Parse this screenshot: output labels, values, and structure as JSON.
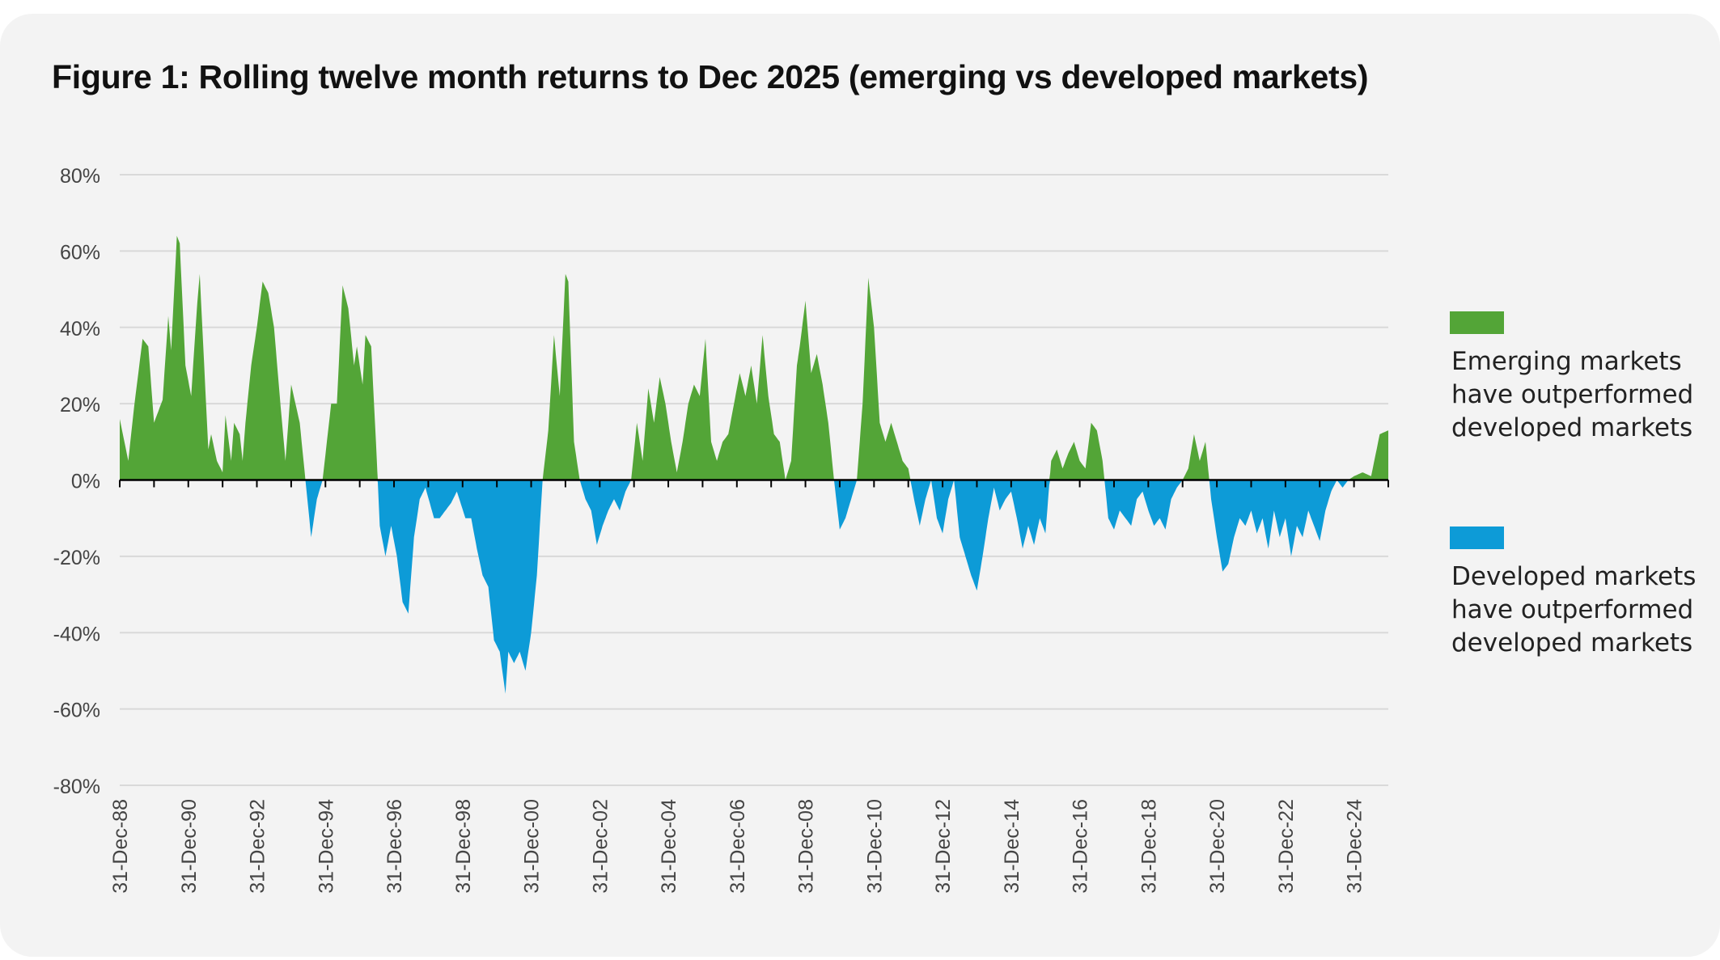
{
  "title": "Figure 1: Rolling twelve month returns to Dec 2025 (emerging vs developed markets)",
  "colors": {
    "positive": "#53a537",
    "negative": "#0d9bd7",
    "gridline": "#d9d9d9",
    "axis": "#000000"
  },
  "legend": [
    {
      "label_line1": "Emerging markets",
      "label_line2": "have outperformed",
      "label_line3": "developed markets",
      "color": "#53a537"
    },
    {
      "label_line1": "Developed markets",
      "label_line2": "have outperformed",
      "label_line3": "developed markets",
      "color": "#0d9bd7"
    }
  ],
  "chart_data": {
    "type": "area",
    "title": "Figure 1: Rolling twelve month returns to Dec 2025 (emerging vs developed markets)",
    "xlabel": "",
    "ylabel": "",
    "ylim": [
      -80,
      80
    ],
    "yticks": [
      "80%",
      "60%",
      "40%",
      "20%",
      "0%",
      "-20%",
      "-40%",
      "-60%",
      "-80%"
    ],
    "xticks": [
      "31-Dec-88",
      "31-Dec-90",
      "31-Dec-92",
      "31-Dec-94",
      "31-Dec-96",
      "31-Dec-98",
      "31-Dec-00",
      "31-Dec-02",
      "31-Dec-04",
      "31-Dec-06",
      "31-Dec-08",
      "31-Dec-10",
      "31-Dec-12",
      "31-Dec-14",
      "31-Dec-16",
      "31-Dec-18",
      "31-Dec-20",
      "31-Dec-22",
      "31-Dec-24"
    ],
    "x_range": [
      "1988-12-31",
      "2025-12-31"
    ],
    "grid": true,
    "legend_position": "right",
    "series": [
      {
        "name": "Emerging markets have outperformed developed markets",
        "note": "relative rolling 12-month return (EM minus DM); positive filled green, negative filled blue",
        "points": [
          [
            "1988-12",
            16
          ],
          [
            "1989-03",
            5
          ],
          [
            "1989-05",
            19
          ],
          [
            "1989-08",
            37
          ],
          [
            "1989-10",
            35
          ],
          [
            "1989-12",
            15
          ],
          [
            "1990-03",
            21
          ],
          [
            "1990-05",
            43
          ],
          [
            "1990-06",
            34
          ],
          [
            "1990-08",
            64
          ],
          [
            "1990-09",
            62
          ],
          [
            "1990-11",
            30
          ],
          [
            "1991-01",
            22
          ],
          [
            "1991-03",
            45
          ],
          [
            "1991-04",
            54
          ],
          [
            "1991-07",
            8
          ],
          [
            "1991-08",
            12
          ],
          [
            "1991-10",
            5
          ],
          [
            "1991-12",
            2
          ],
          [
            "1992-01",
            17
          ],
          [
            "1992-03",
            5
          ],
          [
            "1992-04",
            15
          ],
          [
            "1992-06",
            12
          ],
          [
            "1992-07",
            5
          ],
          [
            "1992-08",
            15
          ],
          [
            "1992-10",
            30
          ],
          [
            "1992-12",
            40
          ],
          [
            "1993-02",
            52
          ],
          [
            "1993-04",
            49
          ],
          [
            "1993-06",
            40
          ],
          [
            "1993-08",
            22
          ],
          [
            "1993-10",
            5
          ],
          [
            "1993-12",
            25
          ],
          [
            "1994-03",
            15
          ],
          [
            "1994-05",
            0
          ],
          [
            "1994-07",
            -15
          ],
          [
            "1994-09",
            -5
          ],
          [
            "1994-11",
            0
          ],
          [
            "1995-02",
            20
          ],
          [
            "1995-04",
            20
          ],
          [
            "1995-06",
            51
          ],
          [
            "1995-08",
            45
          ],
          [
            "1995-10",
            30
          ],
          [
            "1995-11",
            35
          ],
          [
            "1996-01",
            25
          ],
          [
            "1996-02",
            38
          ],
          [
            "1996-04",
            35
          ],
          [
            "1996-06",
            5
          ],
          [
            "1996-07",
            -12
          ],
          [
            "1996-09",
            -20
          ],
          [
            "1996-11",
            -12
          ],
          [
            "1997-01",
            -20
          ],
          [
            "1997-03",
            -32
          ],
          [
            "1997-05",
            -35
          ],
          [
            "1997-07",
            -15
          ],
          [
            "1997-09",
            -5
          ],
          [
            "1997-11",
            -2
          ],
          [
            "1998-02",
            -10
          ],
          [
            "1998-04",
            -10
          ],
          [
            "1998-06",
            -8
          ],
          [
            "1998-08",
            -6
          ],
          [
            "1998-10",
            -3
          ],
          [
            "1999-01",
            -10
          ],
          [
            "1999-03",
            -10
          ],
          [
            "1999-05",
            -18
          ],
          [
            "1999-07",
            -25
          ],
          [
            "1999-09",
            -28
          ],
          [
            "1999-11",
            -42
          ],
          [
            "2000-01",
            -45
          ],
          [
            "2000-03",
            -56
          ],
          [
            "2000-04",
            -45
          ],
          [
            "2000-06",
            -48
          ],
          [
            "2000-08",
            -45
          ],
          [
            "2000-10",
            -50
          ],
          [
            "2000-12",
            -40
          ],
          [
            "2001-02",
            -25
          ],
          [
            "2001-04",
            0
          ],
          [
            "2001-06",
            13
          ],
          [
            "2001-08",
            38
          ],
          [
            "2001-10",
            22
          ],
          [
            "2001-12",
            54
          ],
          [
            "2002-01",
            52
          ],
          [
            "2002-03",
            10
          ],
          [
            "2002-05",
            0
          ],
          [
            "2002-07",
            -5
          ],
          [
            "2002-09",
            -8
          ],
          [
            "2002-11",
            -17
          ],
          [
            "2003-01",
            -12
          ],
          [
            "2003-03",
            -8
          ],
          [
            "2003-05",
            -5
          ],
          [
            "2003-07",
            -8
          ],
          [
            "2003-09",
            -3
          ],
          [
            "2003-11",
            0
          ],
          [
            "2004-01",
            15
          ],
          [
            "2004-03",
            5
          ],
          [
            "2004-05",
            24
          ],
          [
            "2004-07",
            15
          ],
          [
            "2004-09",
            27
          ],
          [
            "2004-11",
            20
          ],
          [
            "2005-01",
            10
          ],
          [
            "2005-03",
            2
          ],
          [
            "2005-05",
            10
          ],
          [
            "2005-07",
            20
          ],
          [
            "2005-09",
            25
          ],
          [
            "2005-11",
            22
          ],
          [
            "2006-01",
            37
          ],
          [
            "2006-03",
            10
          ],
          [
            "2006-05",
            5
          ],
          [
            "2006-07",
            10
          ],
          [
            "2006-09",
            12
          ],
          [
            "2006-11",
            20
          ],
          [
            "2007-01",
            28
          ],
          [
            "2007-03",
            22
          ],
          [
            "2007-05",
            30
          ],
          [
            "2007-07",
            20
          ],
          [
            "2007-09",
            38
          ],
          [
            "2007-11",
            22
          ],
          [
            "2008-01",
            12
          ],
          [
            "2008-03",
            10
          ],
          [
            "2008-05",
            0
          ],
          [
            "2008-07",
            5
          ],
          [
            "2008-09",
            30
          ],
          [
            "2008-10",
            35
          ],
          [
            "2008-12",
            47
          ],
          [
            "2009-02",
            28
          ],
          [
            "2009-04",
            33
          ],
          [
            "2009-06",
            25
          ],
          [
            "2009-08",
            15
          ],
          [
            "2009-10",
            0
          ],
          [
            "2009-12",
            -13
          ],
          [
            "2010-02",
            -10
          ],
          [
            "2010-04",
            -5
          ],
          [
            "2010-06",
            0
          ],
          [
            "2010-08",
            20
          ],
          [
            "2010-10",
            53
          ],
          [
            "2010-12",
            40
          ],
          [
            "2011-02",
            15
          ],
          [
            "2011-04",
            10
          ],
          [
            "2011-06",
            15
          ],
          [
            "2011-08",
            10
          ],
          [
            "2011-10",
            5
          ],
          [
            "2011-12",
            3
          ],
          [
            "2012-02",
            -5
          ],
          [
            "2012-04",
            -12
          ],
          [
            "2012-06",
            -5
          ],
          [
            "2012-08",
            0
          ],
          [
            "2012-10",
            -10
          ],
          [
            "2012-12",
            -14
          ],
          [
            "2013-02",
            -5
          ],
          [
            "2013-04",
            0
          ],
          [
            "2013-06",
            -15
          ],
          [
            "2013-08",
            -20
          ],
          [
            "2013-10",
            -25
          ],
          [
            "2013-12",
            -29
          ],
          [
            "2014-02",
            -20
          ],
          [
            "2014-04",
            -10
          ],
          [
            "2014-06",
            -2
          ],
          [
            "2014-08",
            -8
          ],
          [
            "2014-10",
            -5
          ],
          [
            "2014-12",
            -3
          ],
          [
            "2015-02",
            -10
          ],
          [
            "2015-04",
            -18
          ],
          [
            "2015-06",
            -12
          ],
          [
            "2015-08",
            -17
          ],
          [
            "2015-10",
            -10
          ],
          [
            "2015-12",
            -14
          ],
          [
            "2016-02",
            5
          ],
          [
            "2016-04",
            8
          ],
          [
            "2016-06",
            3
          ],
          [
            "2016-08",
            7
          ],
          [
            "2016-10",
            10
          ],
          [
            "2016-12",
            5
          ],
          [
            "2017-02",
            3
          ],
          [
            "2017-04",
            15
          ],
          [
            "2017-06",
            13
          ],
          [
            "2017-08",
            5
          ],
          [
            "2017-10",
            -10
          ],
          [
            "2017-12",
            -13
          ],
          [
            "2018-02",
            -8
          ],
          [
            "2018-04",
            -10
          ],
          [
            "2018-06",
            -12
          ],
          [
            "2018-08",
            -5
          ],
          [
            "2018-10",
            -3
          ],
          [
            "2018-12",
            -8
          ],
          [
            "2019-02",
            -12
          ],
          [
            "2019-04",
            -10
          ],
          [
            "2019-06",
            -13
          ],
          [
            "2019-08",
            -5
          ],
          [
            "2019-10",
            -2
          ],
          [
            "2019-12",
            0
          ],
          [
            "2020-02",
            3
          ],
          [
            "2020-04",
            12
          ],
          [
            "2020-06",
            5
          ],
          [
            "2020-08",
            10
          ],
          [
            "2020-10",
            -5
          ],
          [
            "2020-12",
            -15
          ],
          [
            "2021-02",
            -24
          ],
          [
            "2021-04",
            -22
          ],
          [
            "2021-06",
            -15
          ],
          [
            "2021-08",
            -10
          ],
          [
            "2021-10",
            -12
          ],
          [
            "2021-12",
            -8
          ],
          [
            "2022-02",
            -14
          ],
          [
            "2022-04",
            -10
          ],
          [
            "2022-06",
            -18
          ],
          [
            "2022-08",
            -8
          ],
          [
            "2022-10",
            -15
          ],
          [
            "2022-12",
            -10
          ],
          [
            "2023-02",
            -20
          ],
          [
            "2023-04",
            -12
          ],
          [
            "2023-06",
            -15
          ],
          [
            "2023-08",
            -8
          ],
          [
            "2023-10",
            -12
          ],
          [
            "2023-12",
            -16
          ],
          [
            "2024-02",
            -8
          ],
          [
            "2024-04",
            -3
          ],
          [
            "2024-06",
            0
          ],
          [
            "2024-08",
            -2
          ],
          [
            "2024-10",
            0
          ],
          [
            "2024-12",
            1
          ],
          [
            "2025-03",
            2
          ],
          [
            "2025-06",
            1
          ],
          [
            "2025-09",
            12
          ],
          [
            "2025-12",
            13
          ]
        ]
      }
    ]
  }
}
